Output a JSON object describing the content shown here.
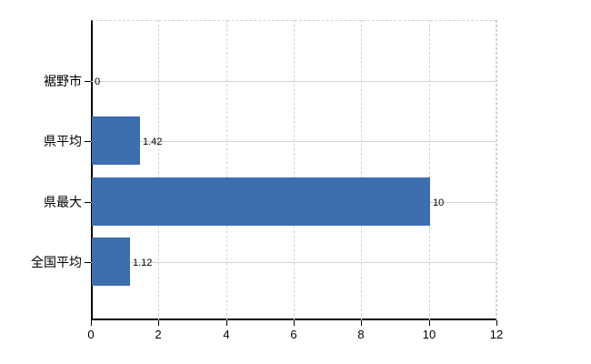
{
  "chart_data": {
    "type": "bar",
    "orientation": "horizontal",
    "title": "",
    "xlabel": "",
    "ylabel": "",
    "categories": [
      "裾野市",
      "県平均",
      "県最大",
      "全国平均"
    ],
    "values": [
      0,
      1.42,
      10,
      1.12
    ],
    "value_labels": [
      "0",
      "1.42",
      "10",
      "1.12"
    ],
    "xlim": [
      0,
      12
    ],
    "xticks": [
      0,
      2,
      4,
      6,
      8,
      10,
      12
    ],
    "xtick_labels": [
      "0",
      "2",
      "4",
      "6",
      "8",
      "10",
      "12"
    ],
    "grid": true,
    "legend": false,
    "colors": {
      "bar": "#3d6eb0",
      "grid": "#ccd5cc",
      "axis": "#000000",
      "text": "#000000",
      "background": "#ffffff"
    }
  }
}
